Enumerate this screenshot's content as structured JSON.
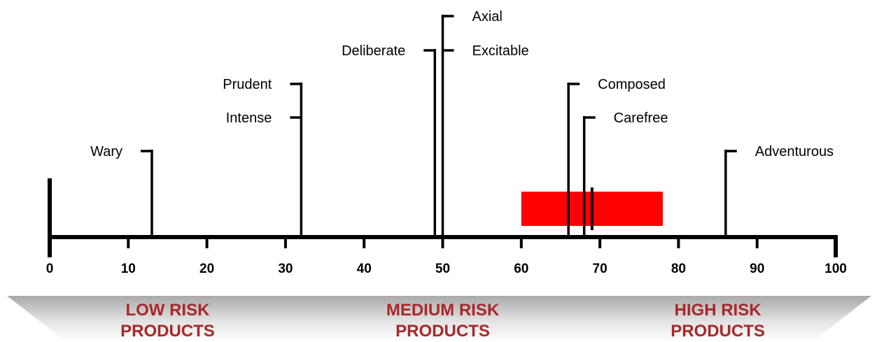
{
  "scale": {
    "min": 0,
    "max": 100,
    "ticks": [
      0,
      10,
      20,
      30,
      40,
      50,
      60,
      70,
      80,
      90,
      100
    ],
    "tick_labels": [
      "0",
      "10",
      "20",
      "30",
      "40",
      "50",
      "60",
      "70",
      "80",
      "90",
      "100"
    ]
  },
  "risk_types": [
    {
      "label": "Wary",
      "value": 13,
      "side": "left",
      "level": 5
    },
    {
      "label": "Prudent",
      "value": 32,
      "side": "left",
      "level": 2
    },
    {
      "label": "Intense",
      "value": 32,
      "side": "left",
      "level": 3
    },
    {
      "label": "Deliberate",
      "value": 49,
      "side": "left",
      "level": 1
    },
    {
      "label": "Axial",
      "value": 50,
      "side": "right",
      "level": 0
    },
    {
      "label": "Excitable",
      "value": 50,
      "side": "right",
      "level": 1
    },
    {
      "label": "Composed",
      "value": 66,
      "side": "right",
      "level": 2
    },
    {
      "label": "Carefree",
      "value": 68,
      "side": "right",
      "level": 3
    },
    {
      "label": "Adventurous",
      "value": 86,
      "side": "right",
      "level": 5
    }
  ],
  "highlight": {
    "from": 60,
    "to": 78,
    "marker": 69,
    "color": "#ff0000"
  },
  "bands": [
    {
      "line1": "LOW RISK",
      "line2": "PRODUCTS",
      "center": 15
    },
    {
      "line1": "MEDIUM RISK",
      "line2": "PRODUCTS",
      "center": 50
    },
    {
      "line1": "HIGH RISK",
      "line2": "PRODUCTS",
      "center": 85
    }
  ],
  "colors": {
    "axis": "#000000",
    "band_text": "#a8282a"
  }
}
